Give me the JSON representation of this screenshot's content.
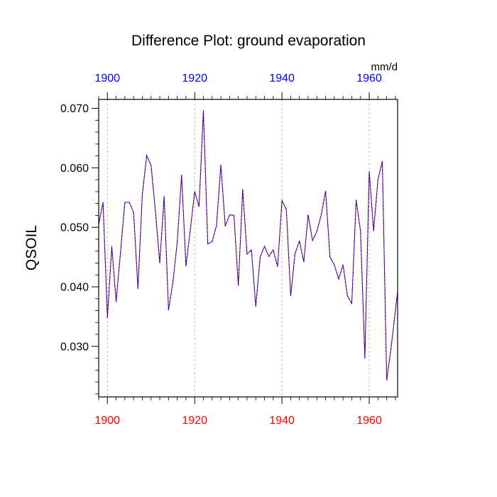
{
  "chart_data": {
    "type": "line",
    "title": "Difference Plot: ground evaporation",
    "units": "mm/d",
    "ylabel": "QSOIL",
    "xlabel": "",
    "xlim": [
      1898,
      1966.5
    ],
    "ylim": [
      0.0215,
      0.0715
    ],
    "x_ticks": [
      1900,
      1920,
      1940,
      1960
    ],
    "y_ticks": [
      0.03,
      0.04,
      0.05,
      0.06,
      0.07
    ],
    "y_tick_labels": [
      "0.030",
      "0.040",
      "0.050",
      "0.060",
      "0.070"
    ],
    "grid": "vertical-dashed",
    "colors": {
      "series_primary": "#0000ff",
      "series_secondary": "#c00000",
      "top_axis_labels": "#0000ff",
      "bottom_axis_labels": "#ff0000",
      "grid": "#aaaaaa",
      "axis": "#000000"
    },
    "x": [
      1898,
      1899,
      1900,
      1901,
      1902,
      1903,
      1904,
      1905,
      1906,
      1907,
      1908,
      1909,
      1910,
      1911,
      1912,
      1913,
      1914,
      1915,
      1916,
      1917,
      1918,
      1919,
      1920,
      1921,
      1922,
      1923,
      1924,
      1925,
      1926,
      1927,
      1928,
      1929,
      1930,
      1931,
      1932,
      1933,
      1934,
      1935,
      1936,
      1937,
      1938,
      1939,
      1940,
      1941,
      1942,
      1943,
      1944,
      1945,
      1946,
      1947,
      1948,
      1949,
      1950,
      1951,
      1952,
      1953,
      1954,
      1955,
      1956,
      1957,
      1958,
      1959,
      1960,
      1961,
      1962,
      1963,
      1964,
      1965,
      1966.5
    ],
    "series": [
      {
        "name": "QSOIL",
        "values": [
          0.0505,
          0.0542,
          0.0348,
          0.0468,
          0.0375,
          0.0458,
          0.0542,
          0.0542,
          0.0525,
          0.0397,
          0.0555,
          0.0621,
          0.0604,
          0.0527,
          0.044,
          0.0552,
          0.0361,
          0.0407,
          0.0475,
          0.0588,
          0.0435,
          0.0496,
          0.056,
          0.0535,
          0.0696,
          0.0472,
          0.0476,
          0.0503,
          0.0605,
          0.0502,
          0.0521,
          0.052,
          0.0402,
          0.0564,
          0.0455,
          0.0462,
          0.0367,
          0.045,
          0.0468,
          0.0451,
          0.0462,
          0.0434,
          0.0545,
          0.053,
          0.0385,
          0.0456,
          0.0477,
          0.0442,
          0.0521,
          0.0478,
          0.0493,
          0.0521,
          0.0561,
          0.045,
          0.0437,
          0.0413,
          0.0437,
          0.0385,
          0.0372,
          0.0546,
          0.0494,
          0.028,
          0.0594,
          0.0494,
          0.058,
          0.0611,
          0.0243,
          0.0297,
          0.0392
        ]
      }
    ]
  }
}
